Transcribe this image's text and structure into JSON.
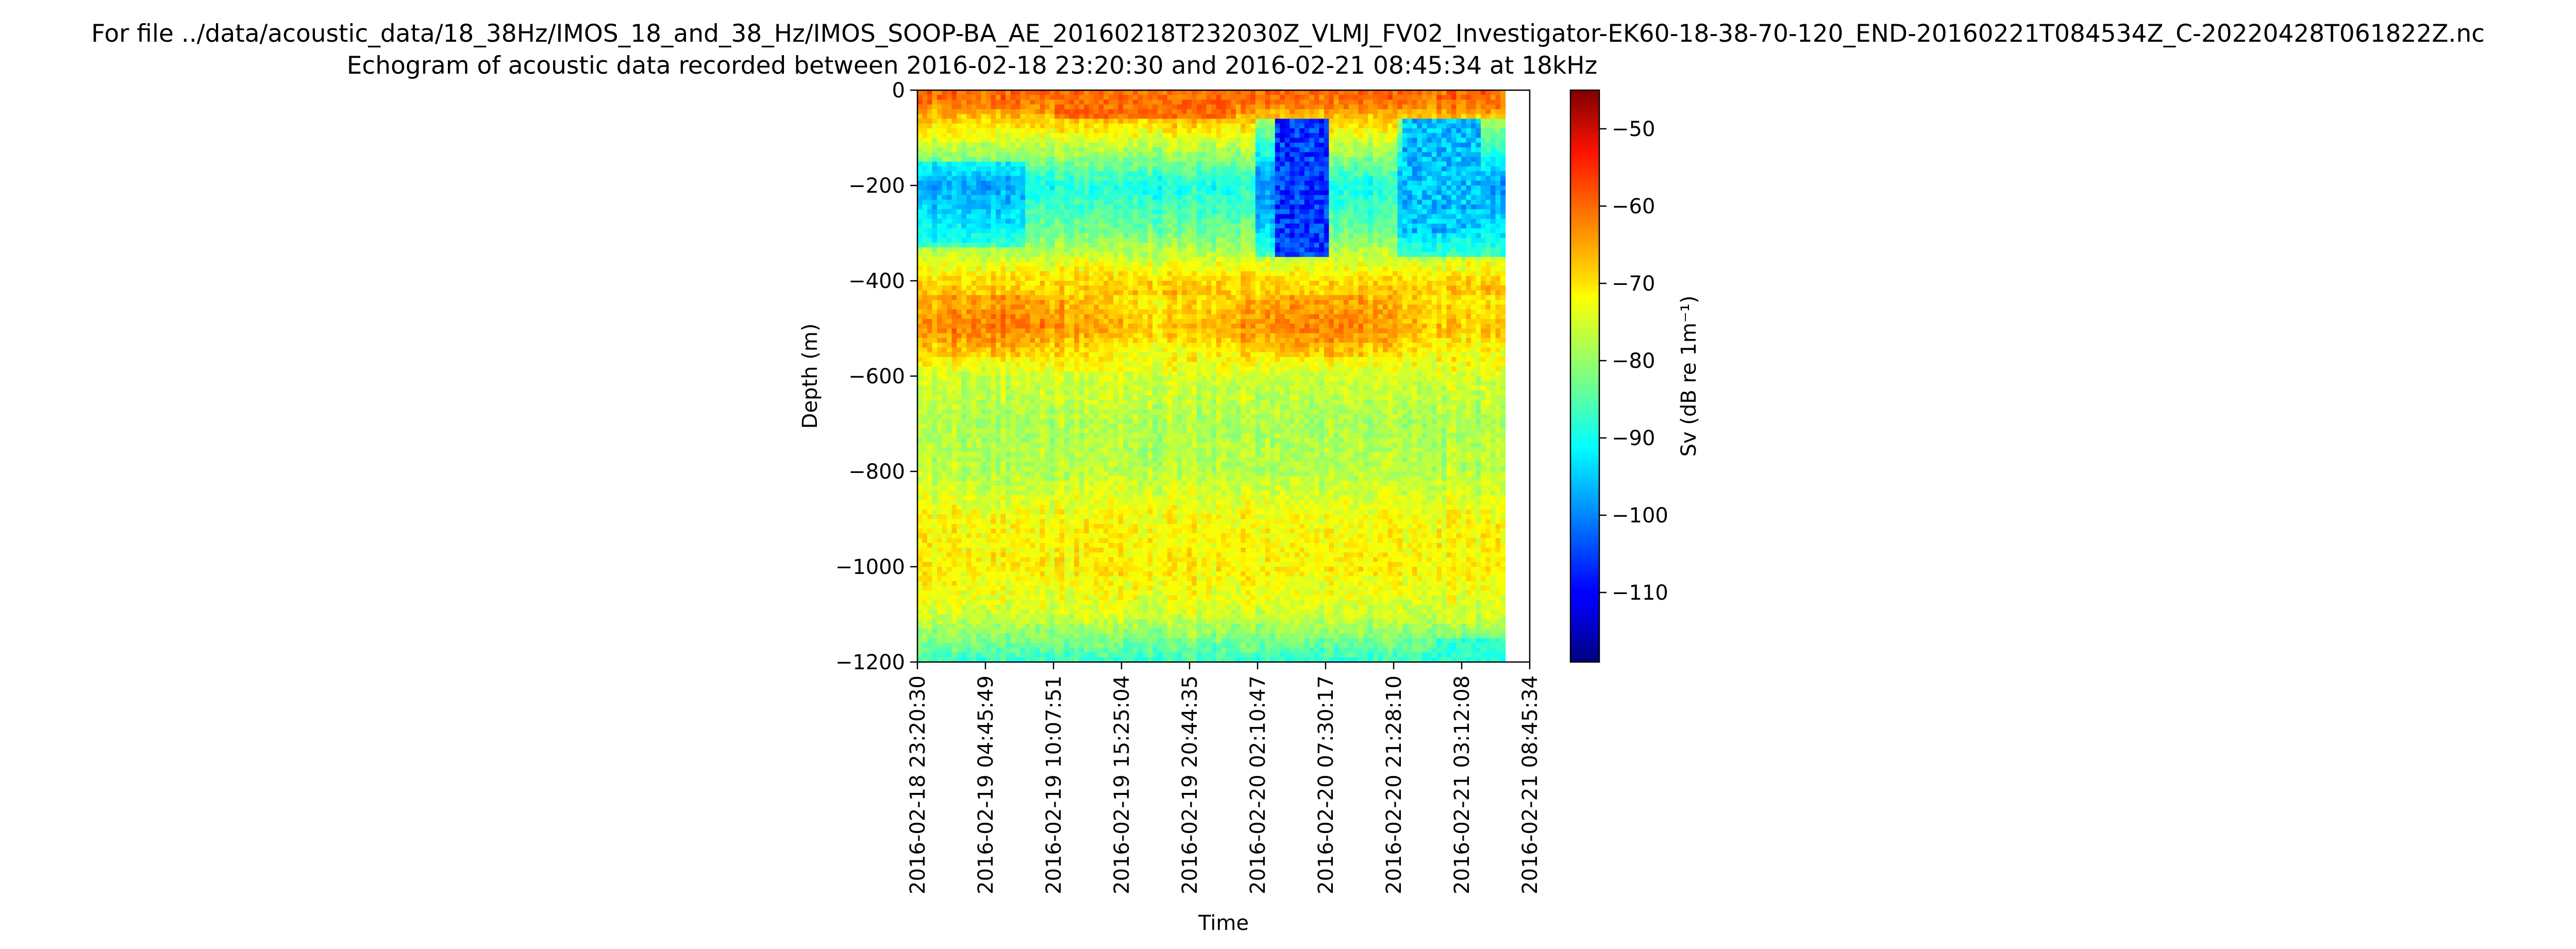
{
  "chart_data": {
    "type": "heatmap",
    "suptitle": "For file ../data/acoustic_data/18_38Hz/IMOS_18_and_38_Hz/IMOS_SOOP-BA_AE_20160218T232030Z_VLMJ_FV02_Investigator-EK60-18-38-70-120_END-20160221T084534Z_C-20220428T061822Z.nc",
    "title": "Echogram of acoustic data recorded between 2016-02-18 23:20:30 and 2016-02-21 08:45:34 at 18kHz",
    "xlabel": "Time",
    "ylabel": "Depth (m)",
    "colorbar_label": "Sv (dB re 1m⁻¹)",
    "colormap": "jet",
    "xlim": [
      "2016-02-18 23:20:30",
      "2016-02-21 08:45:34"
    ],
    "ylim": [
      -1200,
      0
    ],
    "clim": [
      -119,
      -45
    ],
    "x_ticks": [
      "2016-02-18 23:20:30",
      "2016-02-19 04:45:49",
      "2016-02-19 10:07:51",
      "2016-02-19 15:25:04",
      "2016-02-19 20:44:35",
      "2016-02-20 02:10:47",
      "2016-02-20 07:30:17",
      "2016-02-20 21:28:10",
      "2016-02-21 03:12:08",
      "2016-02-21 08:45:34"
    ],
    "y_ticks": [
      0,
      -200,
      -400,
      -600,
      -800,
      -1000,
      -1200
    ],
    "y_tick_labels": [
      "0",
      "−200",
      "−400",
      "−600",
      "−800",
      "−1000",
      "−1200"
    ],
    "colorbar_ticks": [
      -50,
      -60,
      -70,
      -80,
      -90,
      -100,
      -110
    ],
    "colorbar_tick_labels": [
      "−50",
      "−60",
      "−70",
      "−80",
      "−90",
      "−100",
      "−110"
    ],
    "depth_profile": {
      "depth": [
        -20,
        -100,
        -200,
        -300,
        -400,
        -500,
        -600,
        -700,
        -800,
        -900,
        -1000,
        -1100,
        -1200
      ],
      "sv_typical": [
        -62,
        -75,
        -90,
        -83,
        -70,
        -66,
        -76,
        -79,
        -78,
        -73,
        -72,
        -76,
        -88
      ]
    },
    "features": [
      "strong near-surface layer (0 to -60 m) between 2016-02-19 10:07 and 2016-02-19 20:44",
      "deep scattering layer near -450 to -550 m",
      "very low Sv patches (-105 to -115 dB) between -60 and -350 m around 2016-02-20 02:10 to 07:30"
    ]
  }
}
